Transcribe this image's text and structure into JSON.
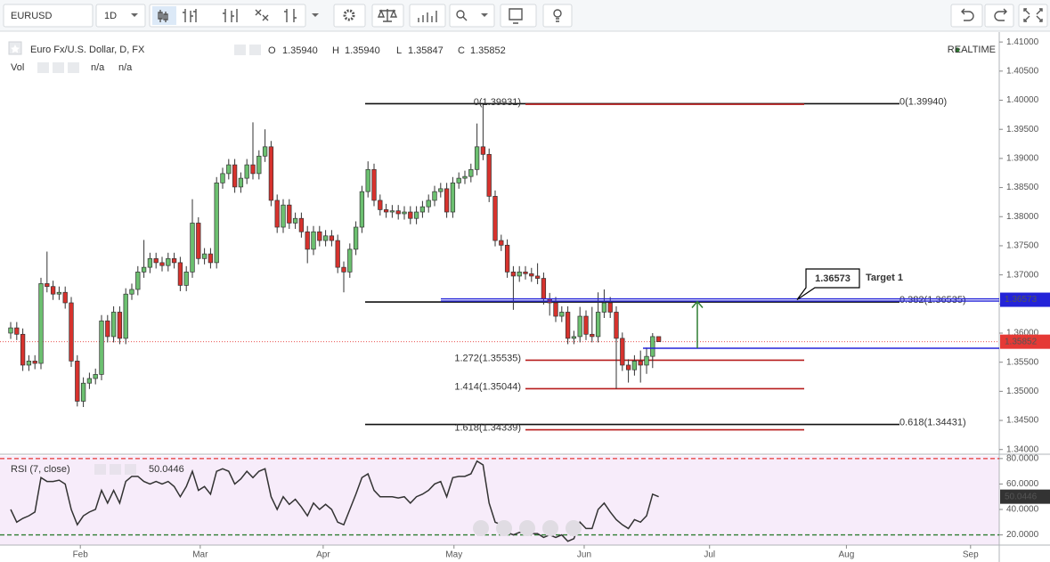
{
  "toolbar": {
    "symbol": "EURUSD",
    "interval": "1D"
  },
  "chart_data": [
    {
      "type": "candlestick",
      "title": "Euro Fx/U.S. Dollar, D, FX",
      "ohlc_header": [
        {
          "name": "O",
          "text": "1.35940"
        },
        {
          "name": "H",
          "text": "1.35940"
        },
        {
          "name": "L",
          "text": "1.35847"
        },
        {
          "name": "C",
          "text": "1.35852"
        }
      ],
      "volume": {
        "name": "Vol",
        "texts": [
          "n/a",
          "n/a"
        ]
      },
      "status": "REALTIME",
      "up_color": "#6cc070",
      "down_color": "#d7322d",
      "grid": false,
      "ylim": [
        1.3395,
        1.4114
      ],
      "yticks": [
        {
          "value": 1.41,
          "label": "1.41000"
        },
        {
          "value": 1.405,
          "label": "1.40500"
        },
        {
          "value": 1.4,
          "label": "1.40000"
        },
        {
          "value": 1.395,
          "label": "1.39500"
        },
        {
          "value": 1.39,
          "label": "1.39000"
        },
        {
          "value": 1.385,
          "label": "1.38500"
        },
        {
          "value": 1.38,
          "label": "1.38000"
        },
        {
          "value": 1.375,
          "label": "1.37500"
        },
        {
          "value": 1.37,
          "label": "1.37000"
        },
        {
          "value": 1.365,
          "label": "1.36500"
        },
        {
          "value": 1.36,
          "label": "1.36000"
        },
        {
          "value": 1.355,
          "label": "1.35500"
        },
        {
          "value": 1.35,
          "label": "1.35000"
        },
        {
          "value": 1.345,
          "label": "1.34500"
        },
        {
          "value": 1.34,
          "label": "1.34000"
        }
      ],
      "xlim": [
        -1.765,
        163.235
      ],
      "xticks": [
        {
          "value": 11.5,
          "label": "Feb"
        },
        {
          "value": 31.3,
          "label": "Mar"
        },
        {
          "value": 51.6,
          "label": "Apr"
        },
        {
          "value": 73.2,
          "label": "May"
        },
        {
          "value": 94.7,
          "label": "Jun"
        },
        {
          "value": 115.4,
          "label": "Jul"
        },
        {
          "value": 138,
          "label": "Aug"
        },
        {
          "value": 158.5,
          "label": "Sep"
        }
      ],
      "ohlc": [
        [
          1.36,
          1.3619,
          1.359,
          1.3609
        ],
        [
          1.3609,
          1.3619,
          1.3588,
          1.3598
        ],
        [
          1.3598,
          1.3608,
          1.3535,
          1.3545
        ],
        [
          1.3545,
          1.3562,
          1.3535,
          1.3552
        ],
        [
          1.3552,
          1.3562,
          1.3538,
          1.3548
        ],
        [
          1.3548,
          1.3695,
          1.3538,
          1.3685
        ],
        [
          1.3685,
          1.374,
          1.367,
          1.368
        ],
        [
          1.368,
          1.369,
          1.3657,
          1.3667
        ],
        [
          1.3667,
          1.368,
          1.3657,
          1.367
        ],
        [
          1.367,
          1.368,
          1.3642,
          1.3652
        ],
        [
          1.3652,
          1.3662,
          1.3542,
          1.3552
        ],
        [
          1.3552,
          1.3562,
          1.3474,
          1.3483
        ],
        [
          1.3483,
          1.3524,
          1.3473,
          1.3514
        ],
        [
          1.3514,
          1.3532,
          1.3504,
          1.3522
        ],
        [
          1.3522,
          1.3539,
          1.3512,
          1.3529
        ],
        [
          1.3529,
          1.3631,
          1.3519,
          1.3621
        ],
        [
          1.3621,
          1.3631,
          1.3584,
          1.3594
        ],
        [
          1.3594,
          1.3646,
          1.3584,
          1.3636
        ],
        [
          1.3636,
          1.3646,
          1.3581,
          1.3591
        ],
        [
          1.3591,
          1.3677,
          1.3581,
          1.3667
        ],
        [
          1.3667,
          1.3685,
          1.3657,
          1.3675
        ],
        [
          1.3675,
          1.3715,
          1.3665,
          1.3705
        ],
        [
          1.3705,
          1.376,
          1.3695,
          1.3713
        ],
        [
          1.3713,
          1.3738,
          1.3703,
          1.3728
        ],
        [
          1.3728,
          1.3738,
          1.3711,
          1.3721
        ],
        [
          1.3721,
          1.3731,
          1.3706,
          1.3716
        ],
        [
          1.3716,
          1.3738,
          1.3706,
          1.3728
        ],
        [
          1.3728,
          1.3738,
          1.3711,
          1.3721
        ],
        [
          1.3721,
          1.3731,
          1.3672,
          1.3682
        ],
        [
          1.3682,
          1.3715,
          1.3672,
          1.3705
        ],
        [
          1.3705,
          1.383,
          1.3695,
          1.3789
        ],
        [
          1.3789,
          1.3799,
          1.3718,
          1.3728
        ],
        [
          1.3728,
          1.3746,
          1.3718,
          1.3736
        ],
        [
          1.3736,
          1.3746,
          1.3711,
          1.3721
        ],
        [
          1.3721,
          1.3868,
          1.3711,
          1.3858
        ],
        [
          1.3858,
          1.3884,
          1.3848,
          1.3874
        ],
        [
          1.3874,
          1.3899,
          1.3864,
          1.3889
        ],
        [
          1.3889,
          1.3899,
          1.3841,
          1.3851
        ],
        [
          1.3851,
          1.3876,
          1.3841,
          1.3866
        ],
        [
          1.3866,
          1.3899,
          1.3856,
          1.3889
        ],
        [
          1.3889,
          1.3962,
          1.3864,
          1.3874
        ],
        [
          1.3874,
          1.3914,
          1.3864,
          1.3904
        ],
        [
          1.3904,
          1.395,
          1.3894,
          1.392
        ],
        [
          1.392,
          1.393,
          1.3818,
          1.3828
        ],
        [
          1.3828,
          1.3838,
          1.3772,
          1.3782
        ],
        [
          1.3782,
          1.383,
          1.3772,
          1.382
        ],
        [
          1.382,
          1.383,
          1.3779,
          1.3789
        ],
        [
          1.3789,
          1.3807,
          1.3779,
          1.3797
        ],
        [
          1.3797,
          1.3807,
          1.3764,
          1.3774
        ],
        [
          1.3774,
          1.3784,
          1.372,
          1.3744
        ],
        [
          1.3744,
          1.3784,
          1.3734,
          1.3774
        ],
        [
          1.3774,
          1.3784,
          1.3749,
          1.3759
        ],
        [
          1.3759,
          1.3777,
          1.3749,
          1.3767
        ],
        [
          1.3767,
          1.3777,
          1.3749,
          1.3759
        ],
        [
          1.3759,
          1.3769,
          1.3703,
          1.3713
        ],
        [
          1.3713,
          1.3723,
          1.367,
          1.3705
        ],
        [
          1.3705,
          1.3754,
          1.3695,
          1.3744
        ],
        [
          1.3744,
          1.3792,
          1.3734,
          1.3782
        ],
        [
          1.3782,
          1.3853,
          1.3772,
          1.3843
        ],
        [
          1.3843,
          1.3895,
          1.3833,
          1.3881
        ],
        [
          1.3881,
          1.3891,
          1.3818,
          1.3828
        ],
        [
          1.3828,
          1.3838,
          1.3802,
          1.3812
        ],
        [
          1.3812,
          1.3822,
          1.3798,
          1.3808
        ],
        [
          1.3808,
          1.382,
          1.3798,
          1.381
        ],
        [
          1.381,
          1.382,
          1.3795,
          1.3805
        ],
        [
          1.3805,
          1.3818,
          1.3795,
          1.3808
        ],
        [
          1.3808,
          1.3818,
          1.3787,
          1.3797
        ],
        [
          1.3797,
          1.3818,
          1.3787,
          1.3808
        ],
        [
          1.3808,
          1.3827,
          1.3798,
          1.3817
        ],
        [
          1.3817,
          1.3838,
          1.3807,
          1.3828
        ],
        [
          1.3828,
          1.3853,
          1.3818,
          1.3843
        ],
        [
          1.3843,
          1.3858,
          1.3833,
          1.3848
        ],
        [
          1.3848,
          1.3858,
          1.3798,
          1.3808
        ],
        [
          1.3808,
          1.3868,
          1.3798,
          1.3858
        ],
        [
          1.3858,
          1.3876,
          1.3848,
          1.3866
        ],
        [
          1.3866,
          1.3879,
          1.3856,
          1.3869
        ],
        [
          1.3869,
          1.3891,
          1.3859,
          1.3881
        ],
        [
          1.3881,
          1.396,
          1.3871,
          1.392
        ],
        [
          1.392,
          1.39931,
          1.3897,
          1.3907
        ],
        [
          1.3907,
          1.3917,
          1.3825,
          1.3835
        ],
        [
          1.3835,
          1.3845,
          1.3749,
          1.3759
        ],
        [
          1.3759,
          1.3769,
          1.3741,
          1.3751
        ],
        [
          1.3751,
          1.3761,
          1.3695,
          1.3705
        ],
        [
          1.3705,
          1.3715,
          1.364,
          1.3698
        ],
        [
          1.3698,
          1.3715,
          1.3688,
          1.3705
        ],
        [
          1.3705,
          1.3715,
          1.3692,
          1.3702
        ],
        [
          1.3702,
          1.3712,
          1.3688,
          1.3698
        ],
        [
          1.3698,
          1.372,
          1.3684,
          1.3694
        ],
        [
          1.3694,
          1.3704,
          1.3649,
          1.3659
        ],
        [
          1.3659,
          1.3669,
          1.363,
          1.3652
        ],
        [
          1.3652,
          1.3662,
          1.3619,
          1.3629
        ],
        [
          1.3629,
          1.3646,
          1.3619,
          1.3636
        ],
        [
          1.3636,
          1.3646,
          1.3581,
          1.3591
        ],
        [
          1.3591,
          1.3604,
          1.3581,
          1.3594
        ],
        [
          1.3594,
          1.3645,
          1.3584,
          1.3629
        ],
        [
          1.3629,
          1.3639,
          1.3588,
          1.3598
        ],
        [
          1.3598,
          1.3645,
          1.3584,
          1.3594
        ],
        [
          1.3594,
          1.367,
          1.3584,
          1.3636
        ],
        [
          1.3636,
          1.3675,
          1.3626,
          1.3652
        ],
        [
          1.3652,
          1.3662,
          1.3626,
          1.3636
        ],
        [
          1.3636,
          1.3646,
          1.35044,
          1.3591
        ],
        [
          1.3591,
          1.3601,
          1.3535,
          1.3545
        ],
        [
          1.3545,
          1.3555,
          1.3515,
          1.3537
        ],
        [
          1.3537,
          1.3562,
          1.3527,
          1.3552
        ],
        [
          1.3552,
          1.357,
          1.3515,
          1.3545
        ],
        [
          1.3545,
          1.3575,
          1.353,
          1.356
        ],
        [
          1.356,
          1.36,
          1.354,
          1.3594
        ],
        [
          1.3594,
          1.3594,
          1.35847,
          1.35852
        ]
      ],
      "last_price": {
        "value": 1.35852,
        "label": "1.35852",
        "color": "#e53935"
      },
      "fib_levels": [
        {
          "value": 1.3994,
          "label": "0(1.39940)",
          "color": "#111111"
        },
        {
          "value": 1.36535,
          "label": "0.382(1.36535)",
          "color": "#111111"
        },
        {
          "value": 1.34431,
          "label": "0.618(1.34431)",
          "color": "#111111"
        },
        {
          "value": 1.39931,
          "label": "0(1.39931)",
          "color": "#b71c1c"
        },
        {
          "value": 1.35535,
          "label": "1.272(1.35535)",
          "color": "#b71c1c"
        },
        {
          "value": 1.35044,
          "label": "1.414(1.35044)",
          "color": "#b71c1c"
        },
        {
          "value": 1.34339,
          "label": "1.618(1.34339)",
          "color": "#b71c1c"
        }
      ],
      "target": {
        "value": 1.36573,
        "label": "1.36573",
        "name": "Target 1",
        "color": "#2323d8",
        "text_color": "#2e7d32"
      },
      "support": {
        "value": 1.3574,
        "color": "#2323d8"
      }
    },
    {
      "type": "line",
      "title": "RSI (7, close)",
      "last_label": "50.0446",
      "color": "#333333",
      "ylim": [
        12,
        82
      ],
      "yticks": [
        {
          "value": 80,
          "label": "80.0000"
        },
        {
          "value": 60,
          "label": "60.0000"
        },
        {
          "value": 40,
          "label": "40.0000"
        },
        {
          "value": 20,
          "label": "20.0000"
        }
      ],
      "bands": [
        {
          "value": 80,
          "color": "#e53935"
        },
        {
          "value": 20,
          "color": "#2e7d32"
        }
      ],
      "values": [
        40,
        30,
        33,
        35,
        38,
        65,
        62,
        62,
        63,
        60,
        40,
        28,
        35,
        38,
        40,
        55,
        45,
        55,
        45,
        62,
        66,
        66,
        62,
        60,
        62,
        60,
        62,
        58,
        50,
        58,
        70,
        55,
        58,
        52,
        70,
        72,
        70,
        60,
        64,
        70,
        65,
        70,
        72,
        50,
        40,
        50,
        44,
        48,
        42,
        35,
        45,
        40,
        44,
        40,
        30,
        28,
        40,
        52,
        65,
        68,
        55,
        50,
        50,
        50,
        49,
        50,
        45,
        50,
        52,
        55,
        60,
        62,
        50,
        65,
        66,
        66,
        68,
        78,
        75,
        45,
        30,
        28,
        22,
        20,
        22,
        22,
        21,
        21,
        18,
        20,
        18,
        20,
        15,
        17,
        30,
        25,
        25,
        40,
        45,
        38,
        32,
        28,
        25,
        32,
        30,
        35,
        52,
        50.0446
      ]
    }
  ]
}
